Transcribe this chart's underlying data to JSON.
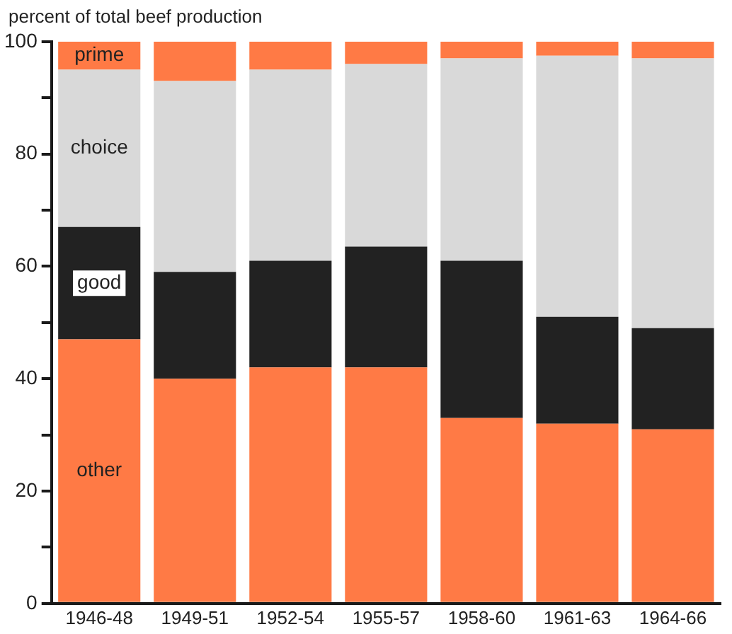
{
  "chart_data": {
    "type": "bar",
    "stacked": true,
    "ylabel": "percent of total beef production",
    "categories": [
      "1946-48",
      "1949-51",
      "1952-54",
      "1955-57",
      "1958-60",
      "1961-63",
      "1964-66"
    ],
    "series": [
      {
        "name": "other",
        "color": "#ff7a45",
        "values": [
          47,
          40,
          42,
          42,
          33,
          32,
          31
        ]
      },
      {
        "name": "good",
        "color": "#222222",
        "values": [
          20,
          19,
          19,
          21.5,
          28,
          19,
          18
        ]
      },
      {
        "name": "choice",
        "color": "#d9d9d9",
        "values": [
          28,
          34,
          34,
          32.5,
          36,
          46.5,
          48
        ]
      },
      {
        "name": "prime",
        "color": "#ff7a45",
        "values": [
          5,
          7,
          5,
          4,
          3,
          2.5,
          3
        ]
      }
    ],
    "ylim": [
      0,
      100
    ],
    "yticks": [
      0,
      {
        "value": 10,
        "label": null
      },
      20,
      {
        "value": 30,
        "label": null
      },
      40,
      {
        "value": 50,
        "label": null
      },
      60,
      {
        "value": 70,
        "label": null
      },
      80,
      {
        "value": 90,
        "label": null
      },
      100
    ],
    "grid": false,
    "legend": false
  }
}
